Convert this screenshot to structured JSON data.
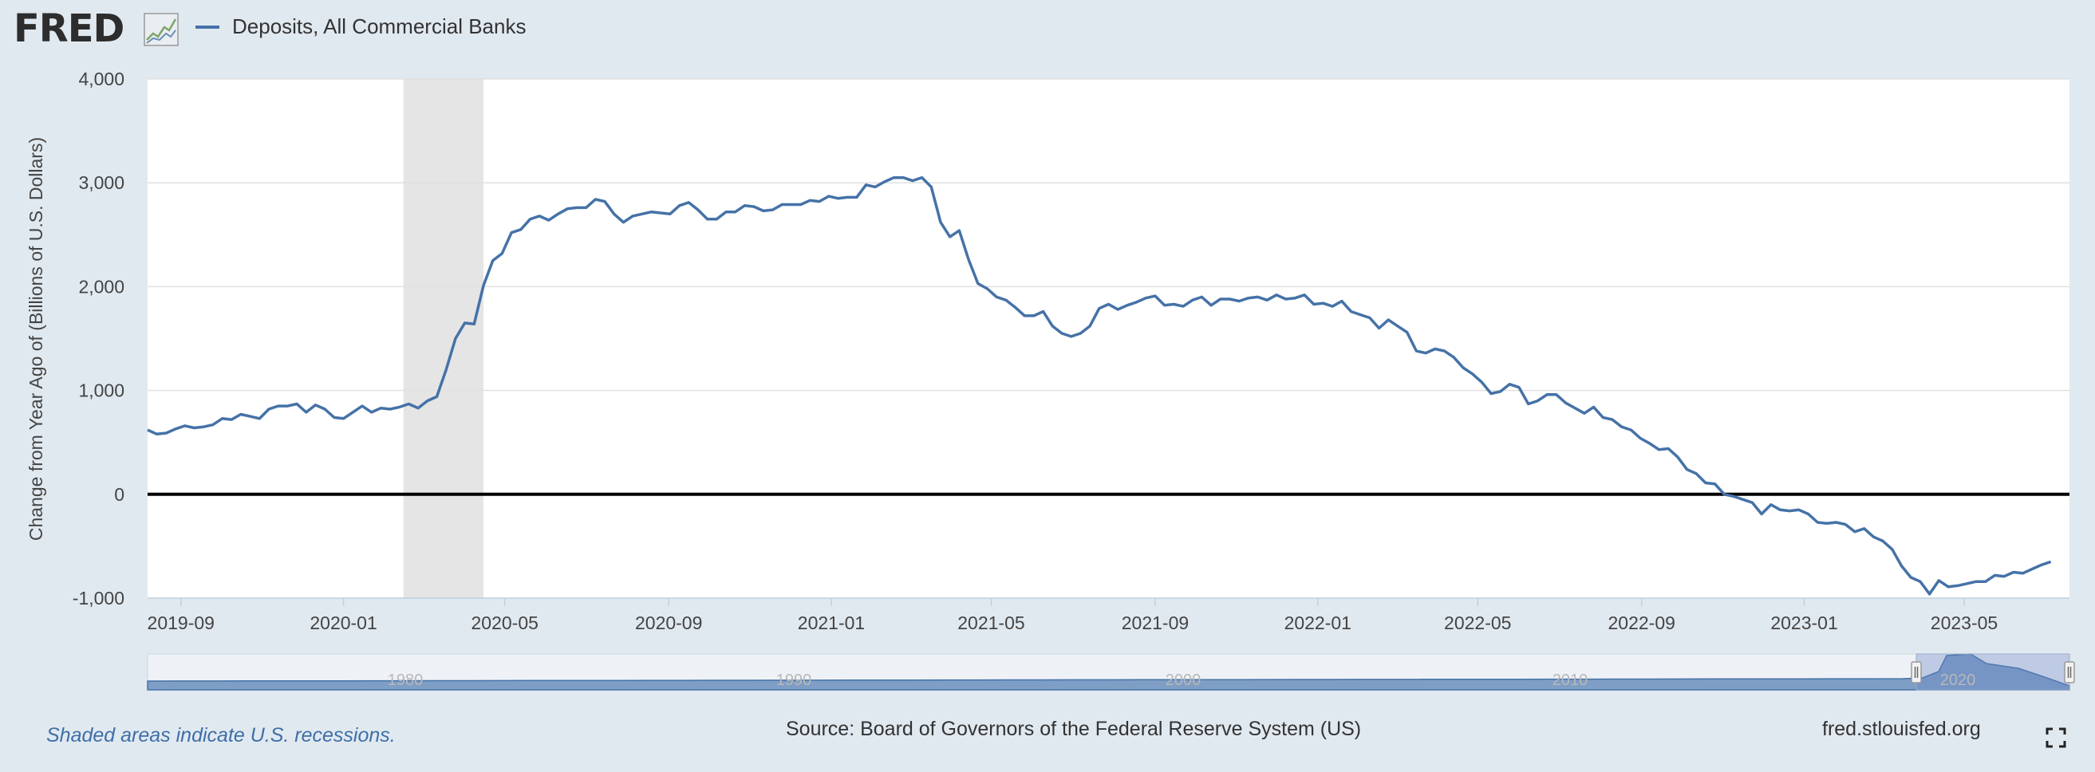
{
  "header": {
    "logo_text": "FRED",
    "legend_label": "Deposits, All Commercial Banks",
    "series_color": "#4572a7"
  },
  "chart_data": {
    "type": "line",
    "ylabel": "Change from Year Ago of (Billions of U.S. Dollars)",
    "ylim": [
      -1000,
      4000
    ],
    "yticks": [
      "4,000",
      "3,000",
      "2,000",
      "1,000",
      "0",
      "-1,000"
    ],
    "xlim": [
      "2019-08-07",
      "2023-07-19"
    ],
    "xticks": [
      "2019-09",
      "2020-01",
      "2020-05",
      "2020-09",
      "2021-01",
      "2021-05",
      "2021-09",
      "2022-01",
      "2022-05",
      "2022-09",
      "2023-01",
      "2023-05"
    ],
    "grid": true,
    "recession": {
      "start": "2020-02-15",
      "end": "2020-04-15",
      "color": "#e5e5e5"
    },
    "series": [
      {
        "name": "Deposits, All Commercial Banks",
        "points": [
          [
            "2019-08-07",
            620
          ],
          [
            "2019-08-14",
            580
          ],
          [
            "2019-08-21",
            590
          ],
          [
            "2019-08-28",
            630
          ],
          [
            "2019-09-04",
            660
          ],
          [
            "2019-09-11",
            640
          ],
          [
            "2019-09-18",
            650
          ],
          [
            "2019-09-25",
            670
          ],
          [
            "2019-10-02",
            730
          ],
          [
            "2019-10-09",
            720
          ],
          [
            "2019-10-16",
            770
          ],
          [
            "2019-10-23",
            750
          ],
          [
            "2019-10-30",
            730
          ],
          [
            "2019-11-06",
            820
          ],
          [
            "2019-11-13",
            850
          ],
          [
            "2019-11-20",
            850
          ],
          [
            "2019-11-27",
            870
          ],
          [
            "2019-12-04",
            790
          ],
          [
            "2019-12-11",
            860
          ],
          [
            "2019-12-18",
            820
          ],
          [
            "2019-12-25",
            740
          ],
          [
            "2020-01-01",
            730
          ],
          [
            "2020-01-08",
            790
          ],
          [
            "2020-01-15",
            850
          ],
          [
            "2020-01-22",
            790
          ],
          [
            "2020-01-29",
            830
          ],
          [
            "2020-02-05",
            820
          ],
          [
            "2020-02-12",
            840
          ],
          [
            "2020-02-19",
            870
          ],
          [
            "2020-02-26",
            830
          ],
          [
            "2020-03-04",
            900
          ],
          [
            "2020-03-11",
            940
          ],
          [
            "2020-03-18",
            1200
          ],
          [
            "2020-03-25",
            1500
          ],
          [
            "2020-04-01",
            1650
          ],
          [
            "2020-04-08",
            1640
          ],
          [
            "2020-04-15",
            2010
          ],
          [
            "2020-04-22",
            2250
          ],
          [
            "2020-04-29",
            2320
          ],
          [
            "2020-05-06",
            2520
          ],
          [
            "2020-05-13",
            2550
          ],
          [
            "2020-05-20",
            2650
          ],
          [
            "2020-05-27",
            2680
          ],
          [
            "2020-06-03",
            2640
          ],
          [
            "2020-06-10",
            2700
          ],
          [
            "2020-06-17",
            2750
          ],
          [
            "2020-06-24",
            2760
          ],
          [
            "2020-07-01",
            2760
          ],
          [
            "2020-07-08",
            2840
          ],
          [
            "2020-07-15",
            2820
          ],
          [
            "2020-07-22",
            2700
          ],
          [
            "2020-07-29",
            2620
          ],
          [
            "2020-08-05",
            2680
          ],
          [
            "2020-08-12",
            2700
          ],
          [
            "2020-08-19",
            2720
          ],
          [
            "2020-08-26",
            2710
          ],
          [
            "2020-09-02",
            2700
          ],
          [
            "2020-09-09",
            2780
          ],
          [
            "2020-09-16",
            2810
          ],
          [
            "2020-09-23",
            2740
          ],
          [
            "2020-09-30",
            2650
          ],
          [
            "2020-10-07",
            2650
          ],
          [
            "2020-10-14",
            2720
          ],
          [
            "2020-10-21",
            2720
          ],
          [
            "2020-10-28",
            2780
          ],
          [
            "2020-11-04",
            2770
          ],
          [
            "2020-11-11",
            2730
          ],
          [
            "2020-11-18",
            2740
          ],
          [
            "2020-11-25",
            2790
          ],
          [
            "2020-12-02",
            2790
          ],
          [
            "2020-12-09",
            2790
          ],
          [
            "2020-12-16",
            2830
          ],
          [
            "2020-12-23",
            2820
          ],
          [
            "2020-12-30",
            2870
          ],
          [
            "2021-01-06",
            2850
          ],
          [
            "2021-01-13",
            2860
          ],
          [
            "2021-01-20",
            2860
          ],
          [
            "2021-01-27",
            2980
          ],
          [
            "2021-02-03",
            2960
          ],
          [
            "2021-02-10",
            3010
          ],
          [
            "2021-02-17",
            3050
          ],
          [
            "2021-02-24",
            3050
          ],
          [
            "2021-03-03",
            3020
          ],
          [
            "2021-03-10",
            3050
          ],
          [
            "2021-03-17",
            2960
          ],
          [
            "2021-03-24",
            2620
          ],
          [
            "2021-03-31",
            2480
          ],
          [
            "2021-04-07",
            2540
          ],
          [
            "2021-04-14",
            2260
          ],
          [
            "2021-04-21",
            2030
          ],
          [
            "2021-04-28",
            1980
          ],
          [
            "2021-05-05",
            1900
          ],
          [
            "2021-05-12",
            1870
          ],
          [
            "2021-05-19",
            1800
          ],
          [
            "2021-05-26",
            1720
          ],
          [
            "2021-06-02",
            1720
          ],
          [
            "2021-06-09",
            1760
          ],
          [
            "2021-06-16",
            1620
          ],
          [
            "2021-06-23",
            1550
          ],
          [
            "2021-06-30",
            1520
          ],
          [
            "2021-07-07",
            1550
          ],
          [
            "2021-07-14",
            1620
          ],
          [
            "2021-07-21",
            1790
          ],
          [
            "2021-07-28",
            1830
          ],
          [
            "2021-08-04",
            1780
          ],
          [
            "2021-08-11",
            1820
          ],
          [
            "2021-08-18",
            1850
          ],
          [
            "2021-08-25",
            1890
          ],
          [
            "2021-09-01",
            1910
          ],
          [
            "2021-09-08",
            1820
          ],
          [
            "2021-09-15",
            1830
          ],
          [
            "2021-09-22",
            1810
          ],
          [
            "2021-09-29",
            1870
          ],
          [
            "2021-10-06",
            1900
          ],
          [
            "2021-10-13",
            1820
          ],
          [
            "2021-10-20",
            1880
          ],
          [
            "2021-10-27",
            1880
          ],
          [
            "2021-11-03",
            1860
          ],
          [
            "2021-11-10",
            1890
          ],
          [
            "2021-11-17",
            1900
          ],
          [
            "2021-11-24",
            1870
          ],
          [
            "2021-12-01",
            1920
          ],
          [
            "2021-12-08",
            1880
          ],
          [
            "2021-12-15",
            1890
          ],
          [
            "2021-12-22",
            1920
          ],
          [
            "2021-12-29",
            1830
          ],
          [
            "2022-01-05",
            1840
          ],
          [
            "2022-01-12",
            1810
          ],
          [
            "2022-01-19",
            1860
          ],
          [
            "2022-01-26",
            1760
          ],
          [
            "2022-02-02",
            1730
          ],
          [
            "2022-02-09",
            1700
          ],
          [
            "2022-02-16",
            1600
          ],
          [
            "2022-02-23",
            1680
          ],
          [
            "2022-03-02",
            1620
          ],
          [
            "2022-03-09",
            1560
          ],
          [
            "2022-03-16",
            1380
          ],
          [
            "2022-03-23",
            1360
          ],
          [
            "2022-03-30",
            1400
          ],
          [
            "2022-04-06",
            1380
          ],
          [
            "2022-04-13",
            1320
          ],
          [
            "2022-04-20",
            1220
          ],
          [
            "2022-04-27",
            1160
          ],
          [
            "2022-05-04",
            1080
          ],
          [
            "2022-05-11",
            970
          ],
          [
            "2022-05-18",
            990
          ],
          [
            "2022-05-25",
            1060
          ],
          [
            "2022-06-01",
            1030
          ],
          [
            "2022-06-08",
            870
          ],
          [
            "2022-06-15",
            900
          ],
          [
            "2022-06-22",
            960
          ],
          [
            "2022-06-29",
            960
          ],
          [
            "2022-07-06",
            880
          ],
          [
            "2022-07-13",
            830
          ],
          [
            "2022-07-20",
            780
          ],
          [
            "2022-07-27",
            840
          ],
          [
            "2022-08-03",
            740
          ],
          [
            "2022-08-10",
            720
          ],
          [
            "2022-08-17",
            650
          ],
          [
            "2022-08-24",
            620
          ],
          [
            "2022-08-31",
            540
          ],
          [
            "2022-09-07",
            490
          ],
          [
            "2022-09-14",
            430
          ],
          [
            "2022-09-21",
            440
          ],
          [
            "2022-09-28",
            360
          ],
          [
            "2022-10-05",
            240
          ],
          [
            "2022-10-12",
            200
          ],
          [
            "2022-10-19",
            110
          ],
          [
            "2022-10-26",
            100
          ],
          [
            "2022-11-02",
            0
          ],
          [
            "2022-11-09",
            -20
          ],
          [
            "2022-11-16",
            -50
          ],
          [
            "2022-11-23",
            -80
          ],
          [
            "2022-11-30",
            -190
          ],
          [
            "2022-12-07",
            -100
          ],
          [
            "2022-12-14",
            -150
          ],
          [
            "2022-12-21",
            -160
          ],
          [
            "2022-12-28",
            -150
          ],
          [
            "2023-01-04",
            -190
          ],
          [
            "2023-01-11",
            -270
          ],
          [
            "2023-01-18",
            -280
          ],
          [
            "2023-01-25",
            -270
          ],
          [
            "2023-02-01",
            -290
          ],
          [
            "2023-02-08",
            -360
          ],
          [
            "2023-02-15",
            -330
          ],
          [
            "2023-02-22",
            -410
          ],
          [
            "2023-03-01",
            -450
          ],
          [
            "2023-03-08",
            -530
          ],
          [
            "2023-03-15",
            -690
          ],
          [
            "2023-03-22",
            -800
          ],
          [
            "2023-03-29",
            -840
          ],
          [
            "2023-04-05",
            -960
          ],
          [
            "2023-04-12",
            -830
          ],
          [
            "2023-04-19",
            -890
          ],
          [
            "2023-04-26",
            -880
          ],
          [
            "2023-05-03",
            -860
          ],
          [
            "2023-05-10",
            -840
          ],
          [
            "2023-05-17",
            -840
          ],
          [
            "2023-05-24",
            -780
          ],
          [
            "2023-05-31",
            -790
          ],
          [
            "2023-06-07",
            -750
          ],
          [
            "2023-06-14",
            -760
          ],
          [
            "2023-06-21",
            -720
          ],
          [
            "2023-06-28",
            -680
          ],
          [
            "2023-07-05",
            -650
          ]
        ]
      }
    ]
  },
  "navigator": {
    "labels": [
      "1980",
      "1990",
      "2000",
      "2010",
      "2020"
    ]
  },
  "footer": {
    "note": "Shaded areas indicate U.S. recessions.",
    "source": "Source: Board of Governors of the Federal Reserve System (US)",
    "url": "fred.stlouisfed.org"
  }
}
